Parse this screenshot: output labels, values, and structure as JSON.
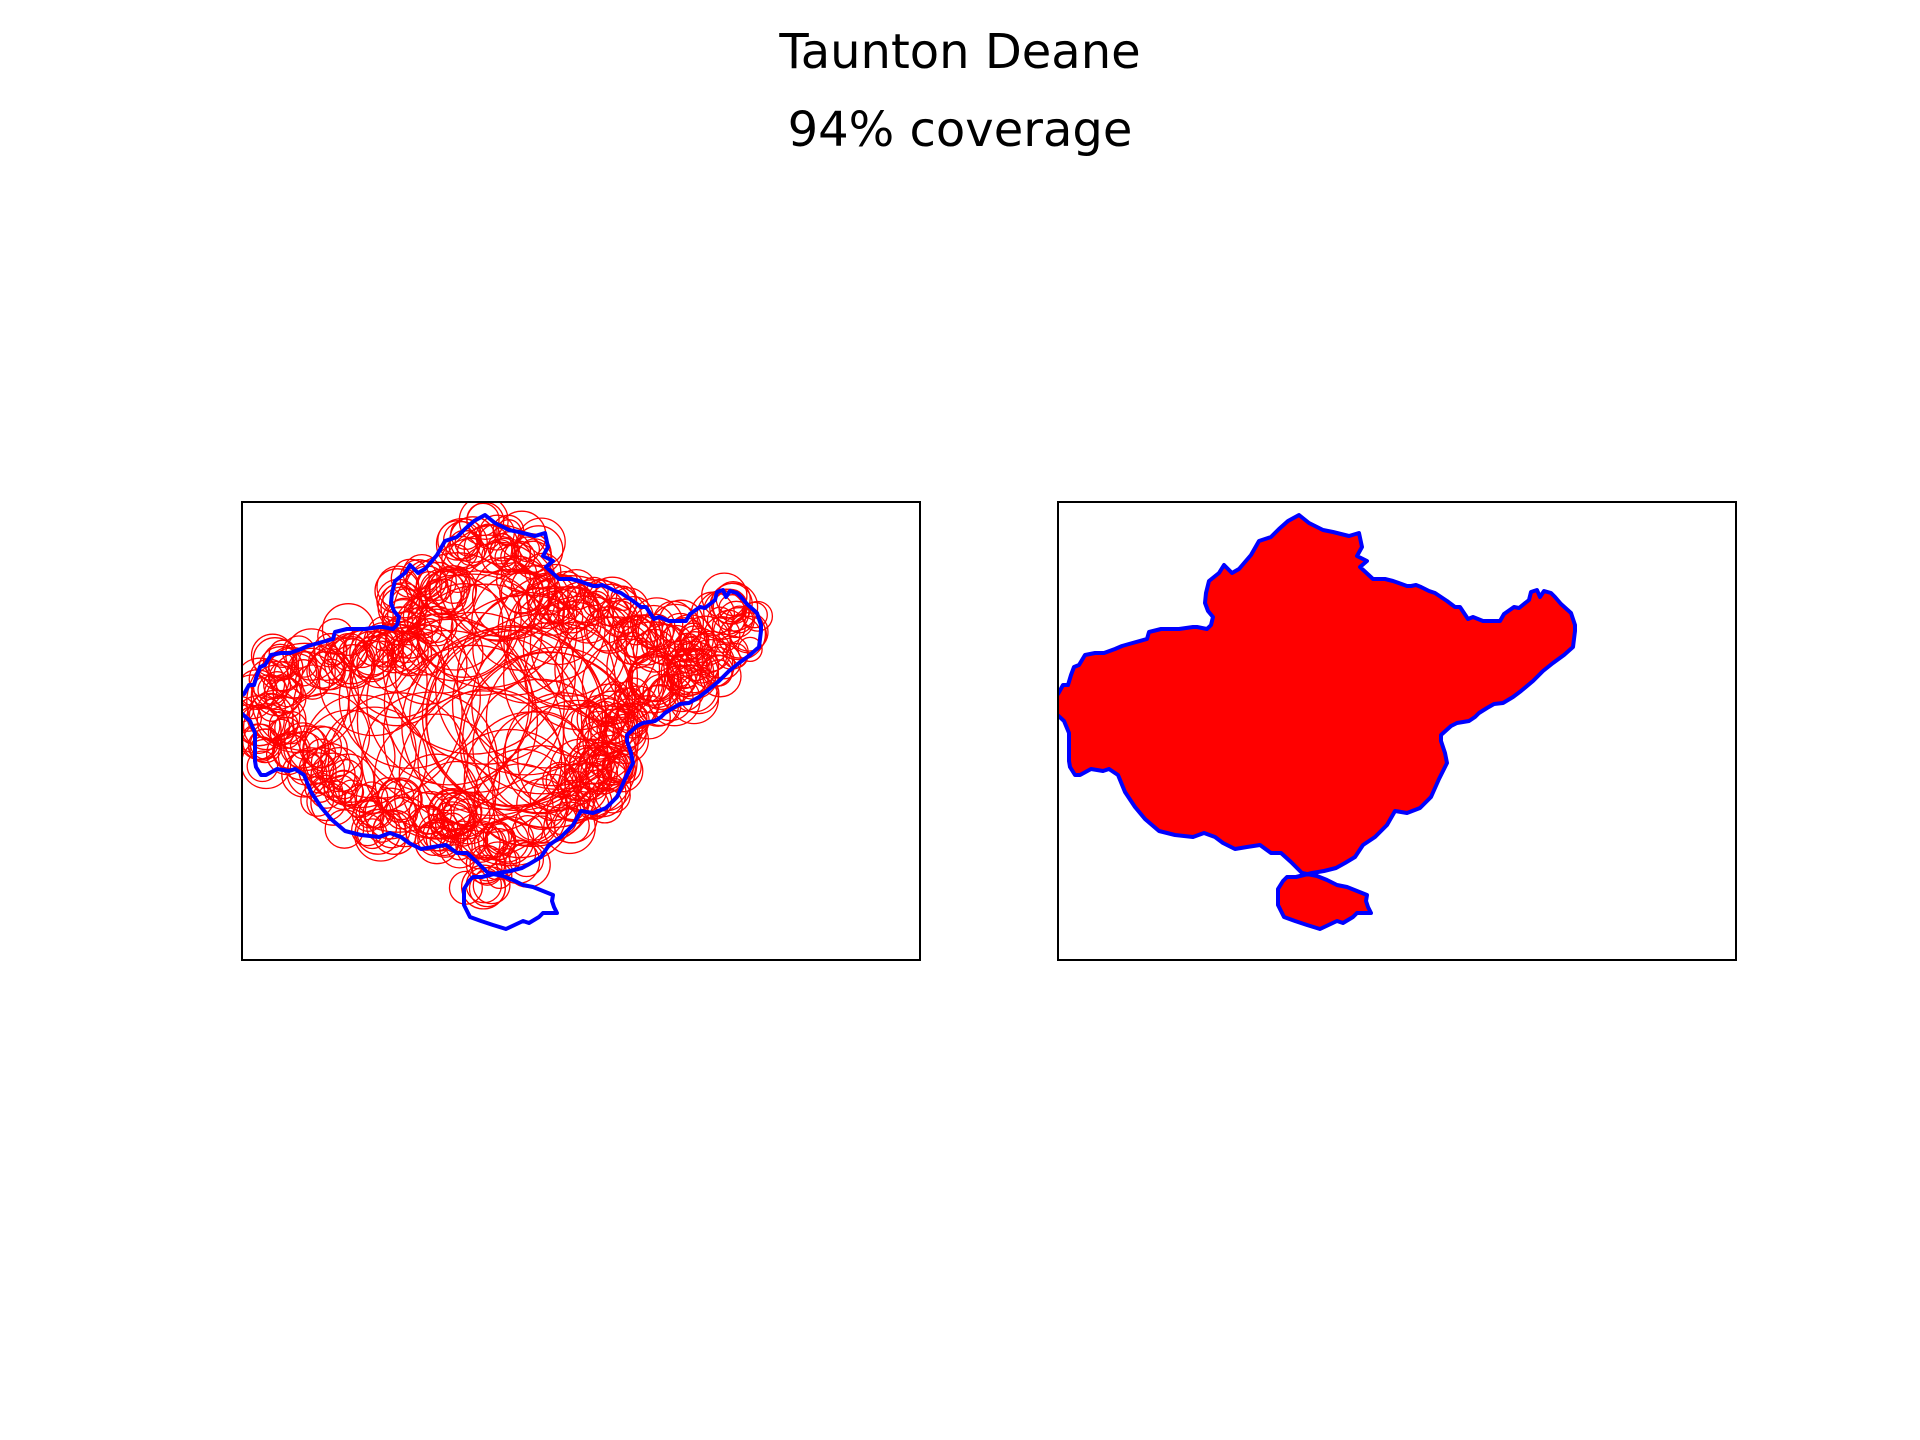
{
  "figure": {
    "title": "Taunton Deane",
    "subtitle": "94% coverage"
  },
  "colors": {
    "boundary": "#0000ff",
    "coverage": "#ff0000",
    "frame": "#000000",
    "background": "#ffffff"
  },
  "panels": [
    {
      "name": "left",
      "content": "coverage circles (outline) over district boundary"
    },
    {
      "name": "right",
      "content": "filled coverage area over district boundary"
    }
  ]
}
